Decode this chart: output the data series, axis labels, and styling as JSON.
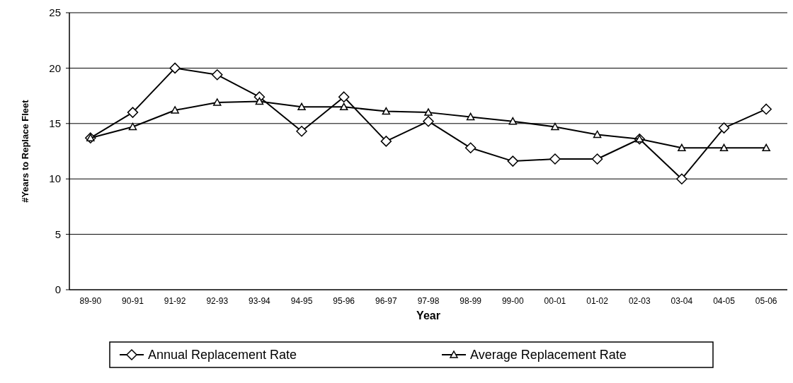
{
  "chart_data": {
    "type": "line",
    "xlabel": "Year",
    "ylabel": "#Years to Replace Fleet",
    "categories": [
      "89-90",
      "90-91",
      "91-92",
      "92-93",
      "93-94",
      "94-95",
      "95-96",
      "96-97",
      "97-98",
      "98-99",
      "99-00",
      "00-01",
      "01-02",
      "02-03",
      "03-04",
      "04-05",
      "05-06"
    ],
    "series": [
      {
        "name": "Annual Replacement Rate",
        "color": "#000000",
        "marker": "diamond",
        "values": [
          13.7,
          16.0,
          20.0,
          19.4,
          17.4,
          14.3,
          17.4,
          13.4,
          15.2,
          12.8,
          11.6,
          11.8,
          11.8,
          13.6,
          10.0,
          14.6,
          16.3
        ]
      },
      {
        "name": "Average Replacement Rate",
        "color": "#000000",
        "marker": "triangle",
        "values": [
          13.7,
          14.7,
          16.2,
          16.9,
          17.0,
          16.5,
          16.5,
          16.1,
          16.0,
          15.6,
          15.2,
          14.7,
          14.0,
          13.6,
          12.8,
          12.8,
          12.8
        ]
      }
    ],
    "ylim": [
      0,
      25
    ],
    "yticks": [
      0,
      5,
      10,
      15,
      20,
      25
    ],
    "grid": "y",
    "legend": "bottom",
    "line_style": "solid"
  }
}
